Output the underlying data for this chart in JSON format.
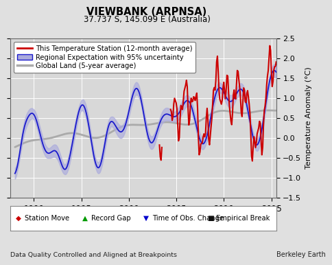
{
  "title": "VIEWBANK (ARPNSA)",
  "subtitle": "37.737 S, 145.099 E (Australia)",
  "ylabel": "Temperature Anomaly (°C)",
  "xlabel_left": "Data Quality Controlled and Aligned at Breakpoints",
  "xlabel_right": "Berkeley Earth",
  "ylim": [
    -1.5,
    2.5
  ],
  "xlim": [
    1987.5,
    2015.5
  ],
  "yticks": [
    -1.5,
    -1.0,
    -0.5,
    0.0,
    0.5,
    1.0,
    1.5,
    2.0,
    2.5
  ],
  "xticks": [
    1990,
    1995,
    2000,
    2005,
    2010,
    2015
  ],
  "background_color": "#e0e0e0",
  "plot_bg_color": "#d8d8d8",
  "grid_color": "#ffffff",
  "red_color": "#cc0000",
  "blue_color": "#1a1acc",
  "blue_fill_color": "#aaaadd",
  "gray_color": "#aaaaaa",
  "legend_marker_colors": {
    "station_move": "#cc0000",
    "record_gap": "#009900",
    "time_obs": "#0000cc",
    "empirical": "#111111"
  }
}
